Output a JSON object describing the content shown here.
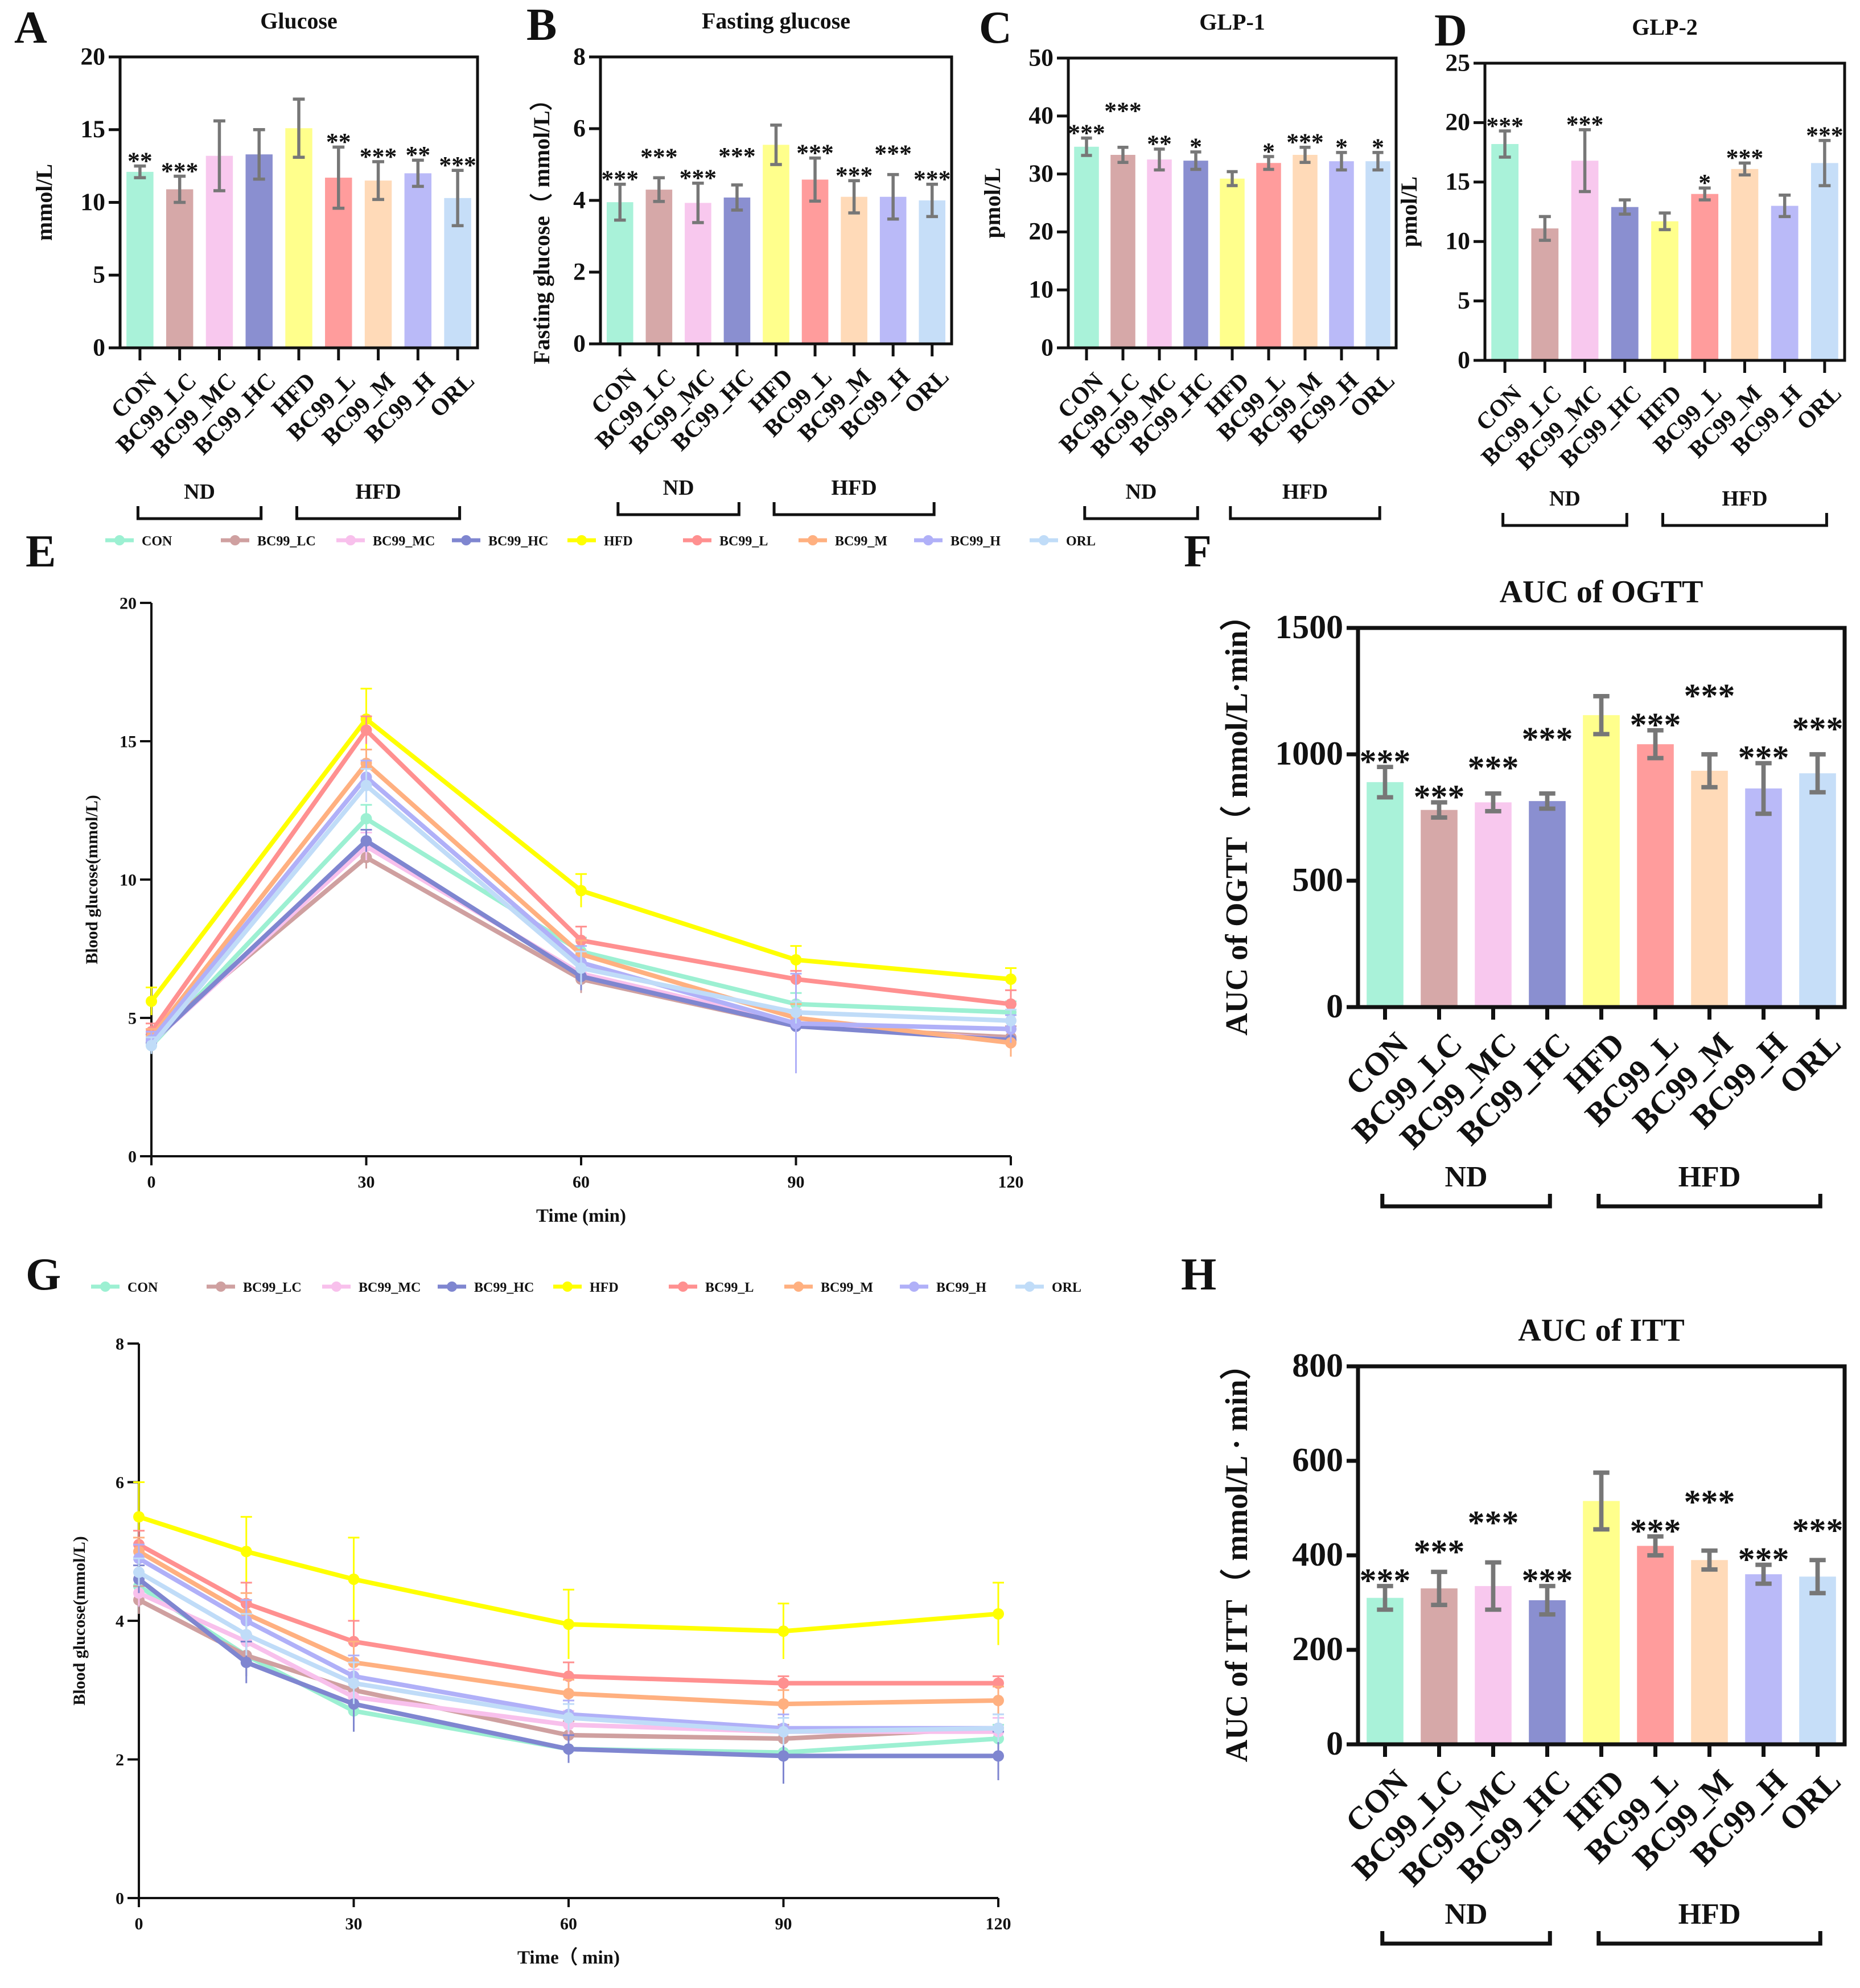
{
  "colors": {
    "CON": "#a9f2d9",
    "BC99_LC": "#d6a8a8",
    "BC99_MC": "#f8c8ee",
    "BC99_HC": "#8a8fd0",
    "HFD": "#ffff8c",
    "BC99_L": "#ff9c9c",
    "BC99_M": "#ffdab8",
    "BC99_H": "#babaf8",
    "ORL": "#c6def8",
    "error_bar": "#777777"
  },
  "line_colors": {
    "CON": "#9cf0d2",
    "BC99_LC": "#cfa0a0",
    "BC99_MC": "#f8c0ec",
    "BC99_HC": "#7f86d0",
    "HFD": "#ffff00",
    "BC99_L": "#ff9090",
    "BC99_M": "#ffb080",
    "BC99_H": "#b0b0f8",
    "ORL": "#c0dcf8"
  },
  "chart_data": [
    {
      "id": "A",
      "panel_label": "A",
      "type": "bar",
      "title": "Glucose",
      "ylabel": "mmol/L",
      "categories": [
        "CON",
        "BC99_LC",
        "BC99_MC",
        "BC99_HC",
        "HFD",
        "BC99_L",
        "BC99_M",
        "BC99_H",
        "ORL"
      ],
      "values": [
        12.1,
        10.9,
        13.2,
        13.3,
        15.1,
        11.7,
        11.5,
        12.0,
        10.3
      ],
      "errors": [
        0.4,
        0.9,
        2.4,
        1.7,
        2.0,
        2.1,
        1.3,
        0.9,
        1.9
      ],
      "significance": [
        "**",
        "***",
        "",
        "",
        "",
        "**",
        "***",
        "**",
        "***"
      ],
      "ylim": [
        0,
        20
      ],
      "yticks": [
        0,
        5,
        10,
        15,
        20
      ],
      "groups": [
        {
          "label": "ND",
          "from": 0,
          "to": 3
        },
        {
          "label": "HFD",
          "from": 4,
          "to": 8
        }
      ]
    },
    {
      "id": "B",
      "panel_label": "B",
      "type": "bar",
      "title": "Fasting glucose",
      "ylabel": "Fasting glucose（ mmol/L）",
      "categories": [
        "CON",
        "BC99_LC",
        "BC99_MC",
        "BC99_HC",
        "HFD",
        "BC99_L",
        "BC99_M",
        "BC99_H",
        "ORL"
      ],
      "values": [
        3.95,
        4.3,
        3.93,
        4.08,
        5.55,
        4.58,
        4.1,
        4.1,
        4.0
      ],
      "errors": [
        0.5,
        0.33,
        0.55,
        0.35,
        0.55,
        0.6,
        0.45,
        0.62,
        0.45
      ],
      "significance": [
        "***",
        "***",
        "***",
        "***",
        "",
        "***",
        "***",
        "***",
        "***"
      ],
      "ylim": [
        0,
        8
      ],
      "yticks": [
        0,
        2,
        4,
        6,
        8
      ],
      "groups": [
        {
          "label": "ND",
          "from": 0,
          "to": 3
        },
        {
          "label": "HFD",
          "from": 4,
          "to": 8
        }
      ]
    },
    {
      "id": "C",
      "panel_label": "C",
      "type": "bar",
      "title": "GLP-1",
      "ylabel": "pmol/L",
      "categories": [
        "CON",
        "BC99_LC",
        "BC99_MC",
        "BC99_HC",
        "HFD",
        "BC99_L",
        "BC99_M",
        "BC99_H",
        "ORL"
      ],
      "values": [
        34.7,
        33.3,
        32.5,
        32.3,
        29.2,
        31.9,
        33.3,
        32.2,
        32.2
      ],
      "errors": [
        1.5,
        1.3,
        1.8,
        1.5,
        1.2,
        1.1,
        1.3,
        1.5,
        1.5
      ],
      "significance": [
        "***",
        "***",
        "**",
        "*",
        "",
        "*",
        "***",
        "*",
        "*"
      ],
      "ylim": [
        0,
        50
      ],
      "yticks": [
        0,
        10,
        20,
        30,
        40,
        50
      ],
      "groups": [
        {
          "label": "ND",
          "from": 0,
          "to": 3
        },
        {
          "label": "HFD",
          "from": 4,
          "to": 8
        }
      ]
    },
    {
      "id": "D",
      "panel_label": "D",
      "type": "bar",
      "title": "GLP-2",
      "ylabel": "pmol/L",
      "categories": [
        "CON",
        "BC99_LC",
        "BC99_MC",
        "BC99_HC",
        "HFD",
        "BC99_L",
        "BC99_M",
        "BC99_H",
        "ORL"
      ],
      "values": [
        18.2,
        11.1,
        16.8,
        12.9,
        11.7,
        14.0,
        16.1,
        13.0,
        16.6
      ],
      "errors": [
        1.1,
        1.0,
        2.6,
        0.6,
        0.7,
        0.5,
        0.5,
        0.9,
        1.9
      ],
      "significance": [
        "***",
        "",
        "***",
        "",
        "",
        "*",
        "***",
        "",
        "***"
      ],
      "ylim": [
        0,
        25
      ],
      "yticks": [
        0,
        5,
        10,
        15,
        20,
        25
      ],
      "groups": [
        {
          "label": "ND",
          "from": 0,
          "to": 3
        },
        {
          "label": "HFD",
          "from": 4,
          "to": 8
        }
      ]
    },
    {
      "id": "E",
      "panel_label": "E",
      "type": "line",
      "title": "",
      "ylabel": "Blood glucose(mmol/L)",
      "xlabel": "Time (min)",
      "x": [
        0,
        30,
        60,
        90,
        120
      ],
      "xticks": [
        0,
        30,
        60,
        90,
        120
      ],
      "xlim": [
        0,
        120
      ],
      "ylim": [
        0,
        20
      ],
      "yticks": [
        0,
        5,
        10,
        15,
        20
      ],
      "legend": "top",
      "series": [
        {
          "name": "CON",
          "values": [
            4.0,
            12.2,
            7.4,
            5.5,
            5.2
          ],
          "errors": [
            0.3,
            0.5,
            0.5,
            0.4,
            0.4
          ]
        },
        {
          "name": "BC99_LC",
          "values": [
            4.3,
            10.8,
            6.4,
            4.7,
            4.3
          ],
          "errors": [
            0.3,
            0.4,
            0.5,
            0.4,
            0.4
          ]
        },
        {
          "name": "BC99_MC",
          "values": [
            4.1,
            11.2,
            6.6,
            4.8,
            4.2
          ],
          "errors": [
            0.3,
            0.5,
            0.6,
            0.5,
            0.4
          ]
        },
        {
          "name": "BC99_HC",
          "values": [
            4.1,
            11.4,
            6.5,
            4.7,
            4.2
          ],
          "errors": [
            0.3,
            0.4,
            0.5,
            0.4,
            0.4
          ]
        },
        {
          "name": "HFD",
          "values": [
            5.6,
            15.8,
            9.6,
            7.1,
            6.4
          ],
          "errors": [
            0.5,
            1.1,
            0.6,
            0.5,
            0.4
          ]
        },
        {
          "name": "BC99_L",
          "values": [
            4.5,
            15.4,
            7.8,
            6.4,
            5.5
          ],
          "errors": [
            0.3,
            0.5,
            0.5,
            0.3,
            0.5
          ]
        },
        {
          "name": "BC99_M",
          "values": [
            4.3,
            14.2,
            7.3,
            5.0,
            4.1
          ],
          "errors": [
            0.3,
            0.5,
            0.5,
            0.5,
            0.5
          ]
        },
        {
          "name": "BC99_H",
          "values": [
            4.2,
            13.7,
            7.0,
            4.8,
            4.6
          ],
          "errors": [
            0.3,
            0.6,
            0.6,
            1.8,
            0.5
          ]
        },
        {
          "name": "ORL",
          "values": [
            4.0,
            13.4,
            6.8,
            5.2,
            4.9
          ],
          "errors": [
            0.3,
            0.6,
            0.6,
            0.4,
            0.4
          ]
        }
      ]
    },
    {
      "id": "F",
      "panel_label": "F",
      "type": "bar",
      "title": "AUC of OGTT",
      "ylabel": "AUC of OGTT（ mmol/L·min）",
      "categories": [
        "CON",
        "BC99_LC",
        "BC99_MC",
        "BC99_HC",
        "HFD",
        "BC99_L",
        "BC99_M",
        "BC99_H",
        "ORL"
      ],
      "values": [
        890,
        780,
        810,
        815,
        1155,
        1040,
        935,
        865,
        925
      ],
      "errors": [
        60,
        30,
        35,
        30,
        75,
        55,
        65,
        100,
        75
      ],
      "significance": [
        "***",
        "***",
        "***",
        "***",
        "",
        "***",
        "***",
        "***",
        "***"
      ],
      "ylim": [
        0,
        1500
      ],
      "yticks": [
        0,
        500,
        1000,
        1500
      ],
      "groups": [
        {
          "label": "ND",
          "from": 0,
          "to": 3
        },
        {
          "label": "HFD",
          "from": 4,
          "to": 8
        }
      ]
    },
    {
      "id": "G",
      "panel_label": "G",
      "type": "line",
      "title": "",
      "ylabel": "Blood glucose(mmol/L)",
      "xlabel": "Time（ min)",
      "x": [
        0,
        15,
        30,
        60,
        90,
        120
      ],
      "xticks": [
        0,
        30,
        60,
        90,
        120
      ],
      "xlim": [
        0,
        120
      ],
      "ylim": [
        0,
        8
      ],
      "yticks": [
        0,
        2,
        4,
        6,
        8
      ],
      "legend": "top",
      "series": [
        {
          "name": "CON",
          "values": [
            4.5,
            3.5,
            2.7,
            2.15,
            2.1,
            2.3
          ],
          "errors": [
            0.2,
            0.3,
            0.3,
            0.2,
            0.2,
            0.2
          ]
        },
        {
          "name": "BC99_LC",
          "values": [
            4.3,
            3.5,
            3.0,
            2.35,
            2.3,
            2.45
          ],
          "errors": [
            0.2,
            0.3,
            0.4,
            0.2,
            0.2,
            0.2
          ]
        },
        {
          "name": "BC99_MC",
          "values": [
            4.4,
            3.7,
            2.9,
            2.5,
            2.4,
            2.4
          ],
          "errors": [
            0.2,
            0.3,
            0.4,
            0.2,
            0.2,
            0.2
          ]
        },
        {
          "name": "BC99_HC",
          "values": [
            4.6,
            3.4,
            2.8,
            2.15,
            2.05,
            2.05
          ],
          "errors": [
            0.2,
            0.3,
            0.4,
            0.2,
            0.4,
            0.35
          ]
        },
        {
          "name": "HFD",
          "values": [
            5.5,
            5.0,
            4.6,
            3.95,
            3.85,
            4.1
          ],
          "errors": [
            0.5,
            0.5,
            0.6,
            0.5,
            0.4,
            0.45
          ]
        },
        {
          "name": "BC99_L",
          "values": [
            5.1,
            4.25,
            3.7,
            3.2,
            3.1,
            3.1
          ],
          "errors": [
            0.2,
            0.3,
            0.3,
            0.2,
            0.1,
            0.1
          ]
        },
        {
          "name": "BC99_M",
          "values": [
            5.0,
            4.1,
            3.4,
            2.95,
            2.8,
            2.85
          ],
          "errors": [
            0.2,
            0.3,
            0.3,
            0.2,
            0.2,
            0.2
          ]
        },
        {
          "name": "BC99_H",
          "values": [
            4.9,
            4.0,
            3.2,
            2.65,
            2.45,
            2.45
          ],
          "errors": [
            0.2,
            0.3,
            0.3,
            0.2,
            0.2,
            0.2
          ]
        },
        {
          "name": "ORL",
          "values": [
            4.7,
            3.8,
            3.1,
            2.6,
            2.4,
            2.45
          ],
          "errors": [
            0.2,
            0.3,
            0.3,
            0.2,
            0.2,
            0.2
          ]
        }
      ]
    },
    {
      "id": "H",
      "panel_label": "H",
      "type": "bar",
      "title": "AUC of ITT",
      "ylabel": "AUC of ITT（ mmol/L · min）",
      "categories": [
        "CON",
        "BC99_LC",
        "BC99_MC",
        "BC99_HC",
        "HFD",
        "BC99_L",
        "BC99_M",
        "BC99_H",
        "ORL"
      ],
      "values": [
        310,
        330,
        335,
        305,
        515,
        420,
        390,
        360,
        355
      ],
      "errors": [
        25,
        35,
        50,
        30,
        60,
        20,
        20,
        20,
        35
      ],
      "significance": [
        "***",
        "***",
        "***",
        "***",
        "",
        "***",
        "***",
        "***",
        "***"
      ],
      "ylim": [
        0,
        800
      ],
      "yticks": [
        0,
        200,
        400,
        600,
        800
      ],
      "groups": [
        {
          "label": "ND",
          "from": 0,
          "to": 3
        },
        {
          "label": "HFD",
          "from": 4,
          "to": 8
        }
      ]
    }
  ]
}
